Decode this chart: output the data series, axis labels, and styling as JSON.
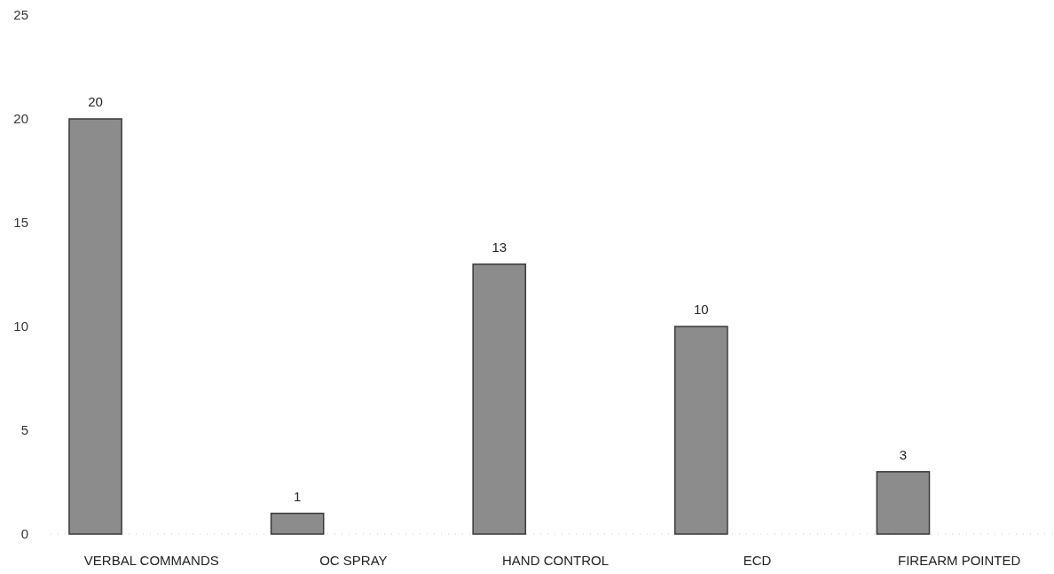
{
  "chart_data": {
    "type": "bar",
    "categories": [
      "VERBAL COMMANDS",
      "OC SPRAY",
      "HAND CONTROL",
      "ECD",
      "FIREARM POINTED"
    ],
    "values": [
      20,
      1,
      13,
      10,
      3
    ],
    "color": "#8c8c8c",
    "ylim": [
      0,
      25
    ],
    "yticks": [
      0,
      5,
      10,
      15,
      20,
      25
    ],
    "grid": false,
    "data_labels": true
  }
}
